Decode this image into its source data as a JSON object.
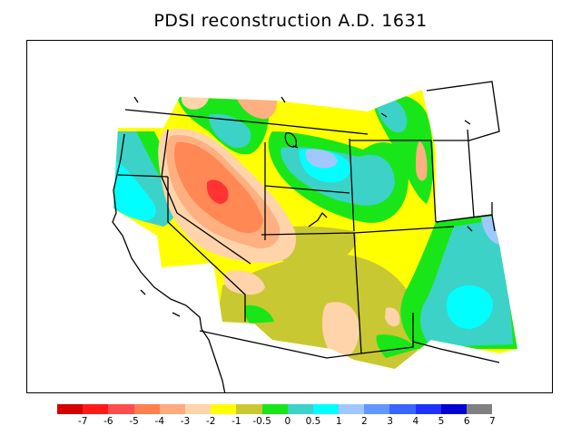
{
  "title": "PDSI reconstruction A.D. 1631",
  "legend": {
    "labels": [
      "-7",
      "-6",
      "-5",
      "-4",
      "-3",
      "-2",
      "-1",
      "-0.5",
      "0",
      "0.5",
      "1",
      "2",
      "3",
      "4",
      "5",
      "6",
      "7"
    ],
    "colors": [
      "#d40000",
      "#ff1a1a",
      "#ff4d4d",
      "#ff7f50",
      "#ffaa80",
      "#ffd4aa",
      "#ffff00",
      "#c8c832",
      "#19e619",
      "#3cd2c8",
      "#00ffff",
      "#a0c8ff",
      "#6496ff",
      "#3c64ff",
      "#1e32ff",
      "#0000d2",
      "#808080"
    ]
  },
  "map_colors": {
    "very_dry": "#ff3333",
    "dry": "#ff8855",
    "moderately_dry": "#ffb080",
    "slightly_dry": "#ffd4aa",
    "near_normal_dry": "#ffff00",
    "mild_dry": "#c8c832",
    "near_normal": "#19e619",
    "mild_wet": "#3cd2c8",
    "wet": "#00ffff",
    "very_wet": "#a0c8ff",
    "boundary": "#000000"
  }
}
